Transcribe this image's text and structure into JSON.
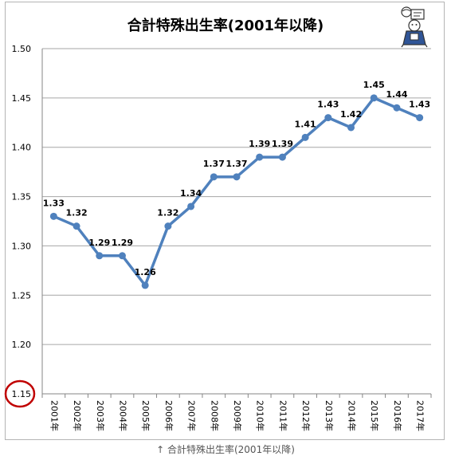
{
  "chart_data": {
    "type": "line",
    "title": "合計特殊出生率(2001年以降)",
    "categories": [
      "2001年",
      "2002年",
      "2003年",
      "2004年",
      "2005年",
      "2006年",
      "2007年",
      "2008年",
      "2009年",
      "2010年",
      "2011年",
      "2012年",
      "2013年",
      "2014年",
      "2015年",
      "2016年",
      "2017年"
    ],
    "series": [
      {
        "values": [
          1.33,
          1.32,
          1.29,
          1.29,
          1.26,
          1.32,
          1.34,
          1.37,
          1.37,
          1.39,
          1.39,
          1.41,
          1.43,
          1.42,
          1.45,
          1.44,
          1.43
        ]
      }
    ],
    "ylim": [
      1.15,
      1.5
    ],
    "yticks": [
      1.15,
      1.2,
      1.25,
      1.3,
      1.35,
      1.4,
      1.45,
      1.5
    ],
    "ytick_labels": [
      "1.15",
      "1.20",
      "1.25",
      "1.30",
      "1.35",
      "1.40",
      "1.45",
      "1.50"
    ],
    "data_labels": [
      "1.33",
      "1.32",
      "1.29",
      "1.29",
      "1.26",
      "1.32",
      "1.34",
      "1.37",
      "1.37",
      "1.39",
      "1.39",
      "1.41",
      "1.43",
      "1.42",
      "1.45",
      "1.44",
      "1.43"
    ],
    "grid": true,
    "line_color": "#4f81bd",
    "highlight_circle_color": "#c00000",
    "highlighted_tick": "1.15"
  },
  "caption": "↑ 合計特殊出生率(2001年以降)"
}
